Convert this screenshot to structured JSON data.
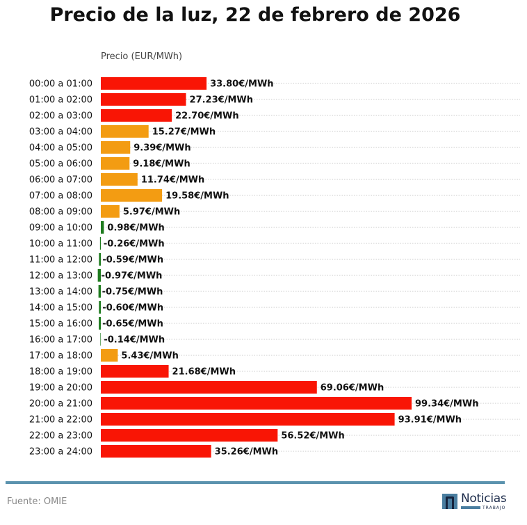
{
  "chart_data": {
    "type": "bar",
    "orientation": "horizontal",
    "title": "Precio de la luz, 22 de febrero de 2026",
    "xlabel": "Precio (EUR/MWh)",
    "unit_suffix": "€/MWh",
    "grid": "dotted horizontal",
    "colors": {
      "high": "#f91505",
      "medium": "#f39c12",
      "low": "#1e7b1e"
    },
    "categories": [
      "00:00 a 01:00",
      "01:00 a 02:00",
      "02:00 a 03:00",
      "03:00 a 04:00",
      "04:00 a 05:00",
      "05:00 a 06:00",
      "06:00 a 07:00",
      "07:00 a 08:00",
      "08:00 a 09:00",
      "09:00 a 10:00",
      "10:00 a 11:00",
      "11:00 a 12:00",
      "12:00 a 13:00",
      "13:00 a 14:00",
      "14:00 a 15:00",
      "15:00 a 16:00",
      "16:00 a 17:00",
      "17:00 a 18:00",
      "18:00 a 19:00",
      "19:00 a 20:00",
      "20:00 a 21:00",
      "21:00 a 22:00",
      "22:00 a 23:00",
      "23:00 a 24:00"
    ],
    "values": [
      33.8,
      27.23,
      22.7,
      15.27,
      9.39,
      9.18,
      11.74,
      19.58,
      5.97,
      0.98,
      -0.26,
      -0.59,
      -0.97,
      -0.75,
      -0.6,
      -0.65,
      -0.14,
      5.43,
      21.68,
      69.06,
      99.34,
      93.91,
      56.52,
      35.26
    ]
  },
  "footer": {
    "source": "Fuente: OMIE",
    "logo_text": "Noticias",
    "logo_sub": "TRABAJO"
  }
}
